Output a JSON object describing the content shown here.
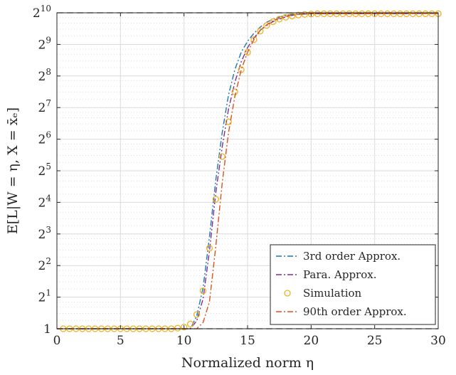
{
  "chart_data": {
    "type": "line",
    "xlabel": "Normalized norm η",
    "ylabel": "E[L|W = η, X = x̄ₑ]",
    "xlim": [
      0,
      30
    ],
    "ylim": [
      0,
      10
    ],
    "y_scale": "log2",
    "grid": true,
    "minor_grid": true,
    "legend_position": "bottom-right",
    "x_ticks": [
      0,
      5,
      10,
      15,
      20,
      25,
      30
    ],
    "x_tick_labels": [
      "0",
      "5",
      "10",
      "15",
      "20",
      "25",
      "30"
    ],
    "y_ticks": [
      0,
      1,
      2,
      3,
      4,
      5,
      6,
      7,
      8,
      9,
      10
    ],
    "y_tick_labels": [
      {
        "base": "1",
        "exp": ""
      },
      {
        "base": "2",
        "exp": "1"
      },
      {
        "base": "2",
        "exp": "2"
      },
      {
        "base": "2",
        "exp": "3"
      },
      {
        "base": "2",
        "exp": "4"
      },
      {
        "base": "2",
        "exp": "5"
      },
      {
        "base": "2",
        "exp": "6"
      },
      {
        "base": "2",
        "exp": "7"
      },
      {
        "base": "2",
        "exp": "8"
      },
      {
        "base": "2",
        "exp": "9"
      },
      {
        "base": "2",
        "exp": "10"
      }
    ],
    "reference_lines": [
      {
        "y": 10,
        "style": "dashed",
        "color": "#1a1a1a"
      },
      {
        "y": 0,
        "style": "dashed",
        "color": "#1a1a1a"
      }
    ],
    "series": [
      {
        "name": "3rd order Approx.",
        "style": "dash-dot",
        "color": "#1f77b4",
        "x": [
          0,
          10.5,
          11,
          11.5,
          12,
          12.5,
          13,
          13.5,
          14,
          14.5,
          15,
          15.5,
          16,
          16.5,
          17,
          17.5,
          18,
          18.5,
          19,
          30
        ],
        "y": [
          0,
          0,
          0.4,
          1.3,
          2.9,
          4.7,
          6.2,
          7.4,
          8.2,
          8.75,
          9.1,
          9.35,
          9.55,
          9.7,
          9.8,
          9.87,
          9.92,
          9.95,
          9.97,
          9.98
        ]
      },
      {
        "name": "Para. Approx.",
        "style": "dash-dot",
        "color": "#7e2f8e",
        "x": [
          0,
          10.5,
          11,
          11.5,
          12,
          12.5,
          13,
          13.5,
          14,
          14.5,
          15,
          15.5,
          16,
          16.5,
          17,
          17.5,
          18,
          18.5,
          19,
          20,
          30
        ],
        "y": [
          0,
          0,
          0.25,
          0.95,
          2.45,
          4.3,
          5.75,
          6.95,
          7.8,
          8.45,
          8.9,
          9.2,
          9.45,
          9.6,
          9.72,
          9.8,
          9.87,
          9.92,
          9.95,
          9.97,
          9.98
        ]
      },
      {
        "name": "Simulation",
        "style": "markers",
        "marker": "circle",
        "color": "#edb120",
        "x": [
          0.5,
          1,
          1.5,
          2,
          2.5,
          3,
          3.5,
          4,
          4.5,
          5,
          5.5,
          6,
          6.5,
          7,
          7.5,
          8,
          8.5,
          9,
          9.5,
          10,
          10.5,
          11,
          11.5,
          12,
          12.5,
          13,
          13.5,
          14,
          14.5,
          15,
          15.5,
          16,
          16.5,
          17,
          17.5,
          18,
          18.5,
          19,
          19.5,
          20,
          20.5,
          21,
          21.5,
          22,
          22.5,
          23,
          23.5,
          24,
          24.5,
          25,
          25.5,
          26,
          26.5,
          27,
          27.5,
          28,
          28.5,
          29,
          29.5,
          30
        ],
        "y": [
          0,
          0,
          0,
          0,
          0,
          0,
          0,
          0,
          0,
          0,
          0,
          0,
          0,
          0,
          0,
          0,
          0,
          0,
          0.02,
          0.05,
          0.15,
          0.45,
          1.2,
          2.55,
          4.1,
          5.45,
          6.55,
          7.5,
          8.2,
          8.75,
          9.15,
          9.42,
          9.6,
          9.72,
          9.8,
          9.86,
          9.9,
          9.93,
          9.95,
          9.96,
          9.97,
          9.97,
          9.97,
          9.97,
          9.97,
          9.97,
          9.97,
          9.97,
          9.97,
          9.97,
          9.97,
          9.97,
          9.97,
          9.97,
          9.97,
          9.97,
          9.97,
          9.97,
          9.97,
          9.97
        ]
      },
      {
        "name": "90th order Approx.",
        "style": "dash-dot",
        "color": "#d95319",
        "x": [
          0,
          11,
          11.5,
          12,
          12.5,
          13,
          13.5,
          14,
          14.5,
          15,
          15.5,
          16,
          16.5,
          17,
          17.5,
          18,
          18.5,
          19,
          20,
          30
        ],
        "y": [
          0,
          0,
          0.2,
          0.85,
          2.6,
          4.6,
          6.2,
          7.35,
          8.2,
          8.75,
          9.15,
          9.45,
          9.62,
          9.75,
          9.83,
          9.89,
          9.93,
          9.95,
          9.97,
          9.98
        ]
      }
    ]
  }
}
